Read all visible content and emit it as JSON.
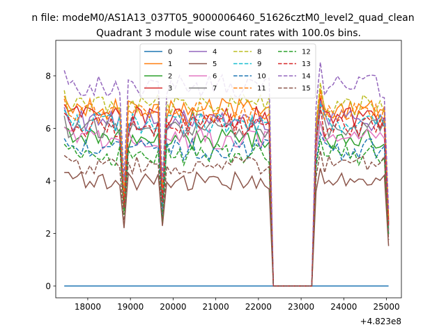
{
  "chart_data": {
    "type": "line",
    "suptitle": "n file: modeM0/AS1A13_037T05_9000006460_51626cztM0_level2_quad_clean",
    "title": "Quadrant 3 module wise count rates with 100.0s bins.",
    "xlabel": "",
    "ylabel": "",
    "x_offset_label": "+4.823e8",
    "xlim": [
      17250,
      25350
    ],
    "ylim": [
      -0.45,
      9.35
    ],
    "xticks": [
      18000,
      19000,
      20000,
      21000,
      22000,
      23000,
      24000,
      25000
    ],
    "yticks": [
      0,
      2,
      4,
      6,
      8
    ],
    "x_start": 17450,
    "x_step": 100,
    "x_end": 25050,
    "gap": [
      22350,
      23250
    ],
    "series": [
      {
        "name": "0",
        "color": "#1f77b4",
        "style": "solid",
        "base": 0.0,
        "amp": 0.0
      },
      {
        "name": "1",
        "color": "#ff7f0e",
        "style": "solid",
        "base": 6.7,
        "amp": 0.45
      },
      {
        "name": "2",
        "color": "#2ca02c",
        "style": "solid",
        "base": 5.6,
        "amp": 0.4
      },
      {
        "name": "3",
        "color": "#d62728",
        "style": "solid",
        "base": 6.4,
        "amp": 0.45
      },
      {
        "name": "4",
        "color": "#9467bd",
        "style": "solid",
        "base": 6.3,
        "amp": 0.4
      },
      {
        "name": "5",
        "color": "#8c564b",
        "style": "solid",
        "base": 4.0,
        "amp": 0.35
      },
      {
        "name": "6",
        "color": "#e377c2",
        "style": "solid",
        "base": 5.6,
        "amp": 0.4
      },
      {
        "name": "7",
        "color": "#7f7f7f",
        "style": "solid",
        "base": 6.0,
        "amp": 0.35
      },
      {
        "name": "8",
        "color": "#bcbd22",
        "style": "dashed",
        "base": 6.9,
        "amp": 0.4
      },
      {
        "name": "9",
        "color": "#17becf",
        "style": "dashed",
        "base": 6.2,
        "amp": 0.4
      },
      {
        "name": "10",
        "color": "#1f77b4",
        "style": "dashed",
        "base": 5.2,
        "amp": 0.4
      },
      {
        "name": "11",
        "color": "#ff7f0e",
        "style": "dashed",
        "base": 6.6,
        "amp": 0.4
      },
      {
        "name": "12",
        "color": "#2ca02c",
        "style": "dashed",
        "base": 5.0,
        "amp": 0.4
      },
      {
        "name": "13",
        "color": "#d62728",
        "style": "dashed",
        "base": 6.1,
        "amp": 0.45
      },
      {
        "name": "14",
        "color": "#9467bd",
        "style": "dashed",
        "base": 7.6,
        "amp": 0.45
      },
      {
        "name": "15",
        "color": "#8c564b",
        "style": "dashed",
        "base": 4.6,
        "amp": 0.35
      }
    ]
  }
}
